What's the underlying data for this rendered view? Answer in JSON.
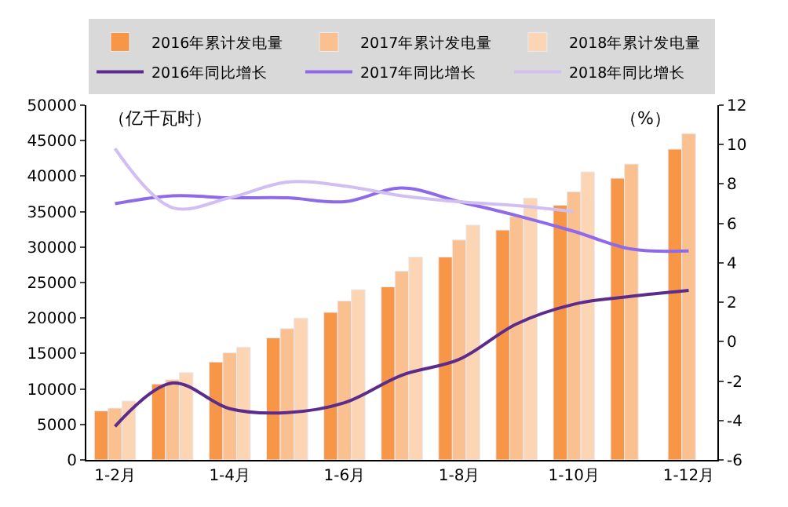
{
  "chart_data": {
    "type": "bar",
    "categories": [
      "1-2月",
      null,
      "1-4月",
      null,
      "1-6月",
      null,
      "1-8月",
      null,
      "1-10月",
      null,
      "1-12月"
    ],
    "series": [
      {
        "name": "2016年累计发电量",
        "color": "#f79646",
        "values": [
          6900,
          10700,
          13800,
          17200,
          20800,
          24400,
          28600,
          32400,
          35900,
          39700,
          43800
        ]
      },
      {
        "name": "2017年累计发电量",
        "color": "#fac090",
        "values": [
          7300,
          11300,
          15100,
          18500,
          22400,
          26600,
          31000,
          34300,
          37800,
          41700,
          46000
        ]
      },
      {
        "name": "2018年累计发电量",
        "color": "#fcd5b5",
        "values": [
          8300,
          12300,
          15900,
          20000,
          24000,
          28600,
          33100,
          36900,
          40600,
          null,
          null
        ]
      },
      {
        "name": "2016年同比增长",
        "type": "line",
        "axis": "y2",
        "color": "#5b2c8c",
        "values": [
          -4.3,
          -2.1,
          -3.4,
          -3.6,
          -3.1,
          -1.7,
          -0.9,
          0.9,
          1.9,
          2.3,
          2.6
        ]
      },
      {
        "name": "2017年同比增长",
        "type": "line",
        "axis": "y2",
        "color": "#8f6ae8",
        "values": [
          7.0,
          7.4,
          7.3,
          7.3,
          7.1,
          7.8,
          7.1,
          6.4,
          5.6,
          4.7,
          4.6
        ]
      },
      {
        "name": "2018年同比增长",
        "type": "line",
        "axis": "y2",
        "color": "#d0bff0",
        "values": [
          9.8,
          6.8,
          7.3,
          8.1,
          7.9,
          7.4,
          7.1,
          6.9,
          6.6,
          null,
          null
        ]
      }
    ],
    "ylim": [
      0,
      50000
    ],
    "yticks": [
      0,
      5000,
      10000,
      15000,
      20000,
      25000,
      30000,
      35000,
      40000,
      45000,
      50000
    ],
    "y2lim": [
      -6,
      12
    ],
    "y2ticks": [
      -6,
      -4,
      -2,
      0,
      2,
      4,
      6,
      8,
      10,
      12
    ],
    "annotations": [
      "（亿千瓦时）",
      "（%）"
    ],
    "legend": "top",
    "marker": "none"
  }
}
